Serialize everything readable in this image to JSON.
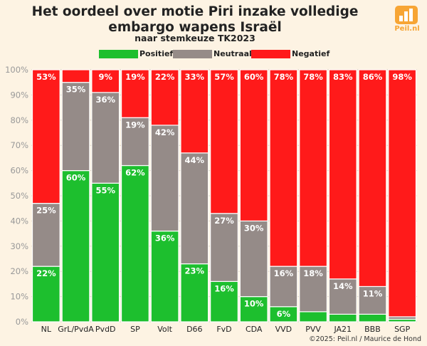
{
  "header": {
    "title": "Het oordeel over motie Piri inzake volledige embargo wapens Israël",
    "subtitle": "naar stemkeuze TK2023"
  },
  "logo": {
    "text": "Peil.nl",
    "color": "#f7a534"
  },
  "footer": {
    "credit": "©2025: Peil.nl / Maurice de Hond"
  },
  "colors": {
    "positief": "#1dbf2e",
    "neutraal": "#958b88",
    "negatief": "#ff1a1a",
    "background": "#fdf3e3"
  },
  "chart_data": {
    "type": "bar",
    "stacked": true,
    "title": "Het oordeel over motie Piri inzake volledige embargo wapens Israël",
    "subtitle": "naar stemkeuze TK2023",
    "categories": [
      "NL",
      "GrL/PvdA",
      "PvdD",
      "SP",
      "Volt",
      "D66",
      "FvD",
      "CDA",
      "VVD",
      "PVV",
      "JA21",
      "BBB",
      "SGP"
    ],
    "series": [
      {
        "name": "Positief",
        "color": "#1dbf2e",
        "values": [
          22,
          60,
          55,
          62,
          36,
          23,
          16,
          10,
          6,
          4,
          3,
          3,
          1
        ]
      },
      {
        "name": "Neutraal",
        "color": "#958b88",
        "values": [
          25,
          35,
          36,
          19,
          42,
          44,
          27,
          30,
          16,
          18,
          14,
          11,
          1
        ]
      },
      {
        "name": "Negatief",
        "color": "#ff1a1a",
        "values": [
          53,
          5,
          9,
          19,
          22,
          33,
          57,
          60,
          78,
          78,
          83,
          86,
          98
        ]
      }
    ],
    "shown_labels": [
      [
        "22%",
        "25%",
        "53%"
      ],
      [
        "60%",
        "35%",
        ""
      ],
      [
        "55%",
        "36%",
        "9%"
      ],
      [
        "62%",
        "19%",
        "19%"
      ],
      [
        "36%",
        "42%",
        "22%"
      ],
      [
        "23%",
        "44%",
        "33%"
      ],
      [
        "16%",
        "27%",
        "57%"
      ],
      [
        "10%",
        "30%",
        "60%"
      ],
      [
        "6%",
        "16%",
        "78%"
      ],
      [
        "",
        "18%",
        "78%"
      ],
      [
        "",
        "14%",
        "83%"
      ],
      [
        "",
        "11%",
        "86%"
      ],
      [
        "",
        "",
        "98%"
      ]
    ],
    "yticks": [
      "0%",
      "10%",
      "20%",
      "30%",
      "40%",
      "50%",
      "60%",
      "70%",
      "80%",
      "90%",
      "100%"
    ],
    "ylim": [
      0,
      100
    ],
    "legend_position": "top",
    "grid": true
  }
}
